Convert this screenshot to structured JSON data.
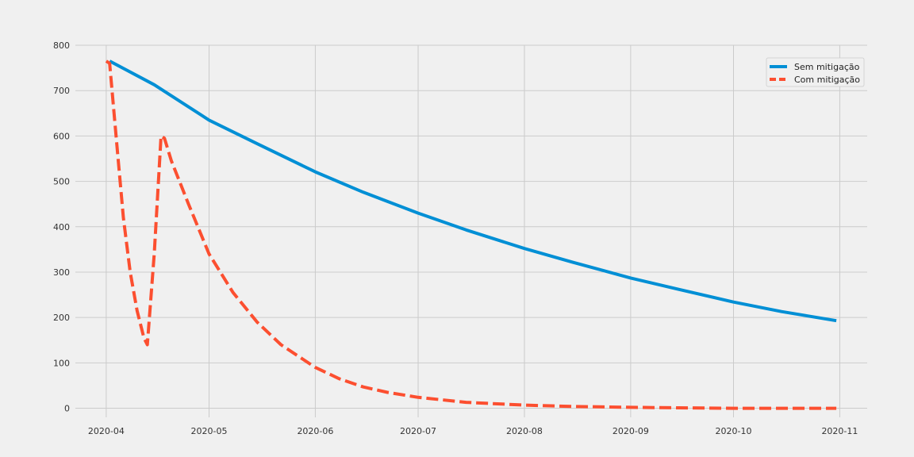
{
  "chart_data": {
    "type": "line",
    "title": "",
    "xlabel": "",
    "ylabel": "",
    "x_axis_kind": "date",
    "xlim": [
      "2020-03-23",
      "2020-11-09"
    ],
    "ylim": [
      -20,
      800
    ],
    "x_ticks": [
      "2020-04-01",
      "2020-05-01",
      "2020-06-01",
      "2020-07-01",
      "2020-08-01",
      "2020-09-01",
      "2020-10-01",
      "2020-11-01"
    ],
    "x_tick_labels": [
      "2020-04",
      "2020-05",
      "2020-06",
      "2020-07",
      "2020-08",
      "2020-09",
      "2020-10",
      "2020-11"
    ],
    "y_ticks": [
      0,
      100,
      200,
      300,
      400,
      500,
      600,
      700,
      800
    ],
    "y_tick_labels": [
      "0",
      "100",
      "200",
      "300",
      "400",
      "500",
      "600",
      "700",
      "800"
    ],
    "grid": true,
    "legend_position": "top-right",
    "series": [
      {
        "name": "Sem mitigação",
        "color": "#008fd5",
        "style": "solid",
        "x": [
          "2020-04-02",
          "2020-04-15",
          "2020-05-01",
          "2020-05-15",
          "2020-06-01",
          "2020-06-15",
          "2020-07-01",
          "2020-07-15",
          "2020-08-01",
          "2020-08-15",
          "2020-09-01",
          "2020-09-15",
          "2020-10-01",
          "2020-10-15",
          "2020-10-31"
        ],
        "values": [
          765,
          713,
          635,
          583,
          521,
          476,
          430,
          393,
          352,
          322,
          287,
          262,
          234,
          213,
          193
        ]
      },
      {
        "name": "Com mitigação",
        "color": "#fc4f30",
        "style": "dashed",
        "x": [
          "2020-04-01",
          "2020-04-02",
          "2020-04-04",
          "2020-04-06",
          "2020-04-08",
          "2020-04-10",
          "2020-04-12",
          "2020-04-13",
          "2020-04-15",
          "2020-04-17",
          "2020-04-18",
          "2020-04-20",
          "2020-04-25",
          "2020-05-01",
          "2020-05-08",
          "2020-05-15",
          "2020-05-22",
          "2020-06-01",
          "2020-06-08",
          "2020-06-15",
          "2020-06-22",
          "2020-07-01",
          "2020-07-15",
          "2020-08-01",
          "2020-08-15",
          "2020-09-01",
          "2020-09-15",
          "2020-10-01",
          "2020-10-15",
          "2020-10-31"
        ],
        "values": [
          765,
          760,
          590,
          420,
          300,
          215,
          155,
          140,
          340,
          600,
          595,
          545,
          450,
          340,
          255,
          190,
          140,
          90,
          65,
          47,
          35,
          24,
          13,
          7,
          4,
          2,
          1,
          0,
          0,
          0
        ]
      }
    ]
  }
}
